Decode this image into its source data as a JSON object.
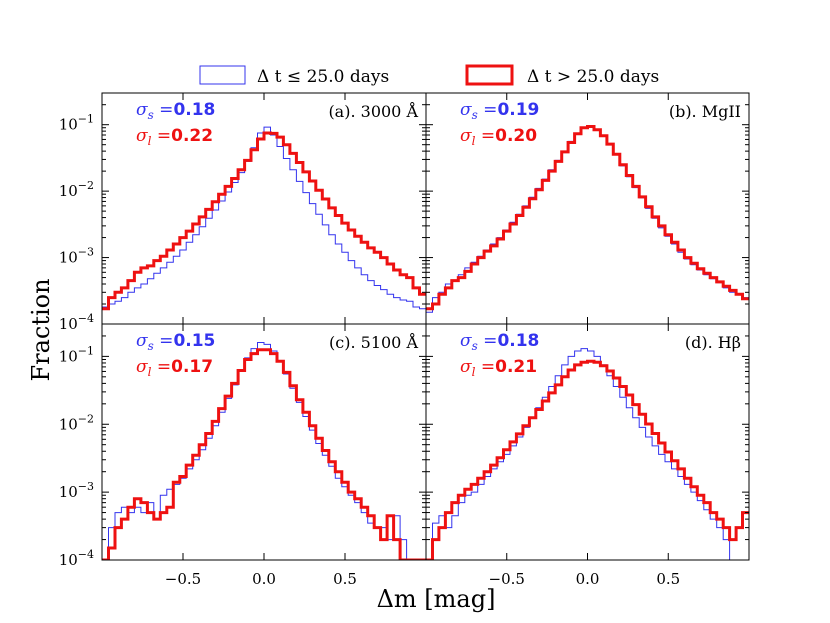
{
  "chart_data": {
    "type": "histogram",
    "layout": "2x2 panels, shared x and y axes",
    "xlabel": "Δm [mag]",
    "ylabel": "Fraction",
    "xlim": [
      -1.0,
      1.0
    ],
    "ylim": [
      0.0001,
      0.3
    ],
    "yscale": "log",
    "x_ticks": [
      -0.5,
      0.0,
      0.5
    ],
    "x_tick_labels": [
      "−0.5",
      "0.0",
      "0.5"
    ],
    "y_ticks": [
      0.0001,
      0.001,
      0.01,
      0.1
    ],
    "y_tick_labels": [
      {
        "base": "10",
        "exp": "−4"
      },
      {
        "base": "10",
        "exp": "−3"
      },
      {
        "base": "10",
        "exp": "−2"
      },
      {
        "base": "10",
        "exp": "−1"
      }
    ],
    "bin_width": 0.04,
    "bin_centers": [
      -0.98,
      -0.94,
      -0.9,
      -0.86,
      -0.82,
      -0.78,
      -0.74,
      -0.7,
      -0.66,
      -0.62,
      -0.58,
      -0.54,
      -0.5,
      -0.46,
      -0.42,
      -0.38,
      -0.34,
      -0.3,
      -0.26,
      -0.22,
      -0.18,
      -0.14,
      -0.1,
      -0.06,
      -0.02,
      0.02,
      0.06,
      0.1,
      0.14,
      0.18,
      0.22,
      0.26,
      0.3,
      0.34,
      0.38,
      0.42,
      0.46,
      0.5,
      0.54,
      0.58,
      0.62,
      0.66,
      0.7,
      0.74,
      0.78,
      0.82,
      0.86,
      0.9,
      0.94,
      0.98
    ],
    "legend": [
      {
        "label": "Δ t ≤ 25.0 days",
        "color": "#3333ee",
        "style": "thin"
      },
      {
        "label": "Δ t > 25.0 days",
        "color": "#ee1111",
        "style": "thick"
      }
    ],
    "panels": [
      {
        "label": "(a). 3000 Å",
        "sigma_s": {
          "symbol": "σ",
          "sub": "s",
          "value": "0.18"
        },
        "sigma_l": {
          "symbol": "σ",
          "sub": "l",
          "value": "0.22"
        },
        "series": [
          {
            "name": "Δ t ≤ 25.0 days",
            "values": [
              0.00018,
              0.0002,
              0.00022,
              0.00025,
              0.0003,
              0.00035,
              0.0004,
              0.00048,
              0.00058,
              0.0007,
              0.00085,
              0.00105,
              0.0013,
              0.0017,
              0.0022,
              0.0029,
              0.0039,
              0.0052,
              0.0071,
              0.0097,
              0.0135,
              0.019,
              0.028,
              0.045,
              0.075,
              0.092,
              0.07,
              0.047,
              0.031,
              0.021,
              0.014,
              0.0095,
              0.0065,
              0.0045,
              0.0031,
              0.0022,
              0.0016,
              0.0012,
              0.0009,
              0.0007,
              0.00055,
              0.00045,
              0.00038,
              0.00033,
              0.00028,
              0.00025,
              0.00023,
              0.00022,
              0.00018,
              0.00017
            ]
          },
          {
            "name": "Δ t > 25.0 days",
            "values": [
              0.00017,
              0.00025,
              0.0003,
              0.00035,
              0.00045,
              0.0006,
              0.0007,
              0.00075,
              0.0009,
              0.00105,
              0.0013,
              0.0016,
              0.002,
              0.0025,
              0.0032,
              0.0041,
              0.0053,
              0.0069,
              0.009,
              0.0118,
              0.0155,
              0.021,
              0.029,
              0.042,
              0.061,
              0.075,
              0.074,
              0.065,
              0.05,
              0.037,
              0.027,
              0.0195,
              0.0142,
              0.0103,
              0.0076,
              0.0056,
              0.0043,
              0.0033,
              0.0026,
              0.0021,
              0.0017,
              0.0014,
              0.0012,
              0.001,
              0.0008,
              0.00065,
              0.00055,
              0.0005,
              0.00035,
              0.00028
            ]
          }
        ]
      },
      {
        "label": "(b). MgII",
        "sigma_s": {
          "symbol": "σ",
          "sub": "s",
          "value": "0.19"
        },
        "sigma_l": {
          "symbol": "σ",
          "sub": "l",
          "value": "0.20"
        },
        "series": [
          {
            "name": "Δ t ≤ 25.0 days",
            "values": [
              0.00015,
              0.00025,
              0.0003,
              0.0004,
              0.00045,
              0.00055,
              0.0007,
              0.00085,
              0.00105,
              0.0013,
              0.0016,
              0.002,
              0.0026,
              0.0034,
              0.0045,
              0.006,
              0.0081,
              0.011,
              0.0152,
              0.021,
              0.029,
              0.04,
              0.056,
              0.075,
              0.092,
              0.095,
              0.085,
              0.068,
              0.05,
              0.035,
              0.024,
              0.0165,
              0.0113,
              0.0079,
              0.0055,
              0.0039,
              0.0028,
              0.0021,
              0.0016,
              0.0012,
              0.00095,
              0.00078,
              0.00065,
              0.00055,
              0.00048,
              0.00042,
              0.00035,
              0.0003,
              0.00028,
              0.00025
            ]
          },
          {
            "name": "Δ t > 25.0 days",
            "values": [
              0.00017,
              0.0002,
              0.00028,
              0.00035,
              0.00045,
              0.0005,
              0.00062,
              0.0008,
              0.001,
              0.00125,
              0.0015,
              0.0019,
              0.0025,
              0.0032,
              0.0043,
              0.0057,
              0.0077,
              0.0105,
              0.0145,
              0.02,
              0.028,
              0.039,
              0.054,
              0.073,
              0.09,
              0.094,
              0.084,
              0.068,
              0.051,
              0.036,
              0.025,
              0.0172,
              0.0118,
              0.0082,
              0.0058,
              0.0041,
              0.003,
              0.0022,
              0.0017,
              0.0013,
              0.001,
              0.00082,
              0.00068,
              0.00058,
              0.0005,
              0.00043,
              0.00037,
              0.00032,
              0.00028,
              0.00024
            ]
          }
        ]
      },
      {
        "label": "(c). 5100 Å",
        "sigma_s": {
          "symbol": "σ",
          "sub": "s",
          "value": "0.15"
        },
        "sigma_l": {
          "symbol": "σ",
          "sub": "l",
          "value": "0.17"
        },
        "series": [
          {
            "name": "Δ t ≤ 25.0 days",
            "values": [
              0.0001,
              0.0003,
              0.0005,
              0.0006,
              0.0005,
              0.0006,
              0.0005,
              0.0007,
              0.0004,
              0.0009,
              0.0011,
              0.0013,
              0.0016,
              0.0022,
              0.003,
              0.0042,
              0.0062,
              0.0095,
              0.015,
              0.024,
              0.038,
              0.06,
              0.095,
              0.13,
              0.16,
              0.15,
              0.12,
              0.085,
              0.055,
              0.034,
              0.021,
              0.013,
              0.0082,
              0.0052,
              0.0035,
              0.0024,
              0.0016,
              0.0012,
              0.0009,
              0.0007,
              0.0005,
              0.00035,
              0.0003,
              0.0003,
              0.0002,
              0.00045,
              0.0002,
              0.0001,
              0.0001,
              0.0001
            ]
          },
          {
            "name": "Δ t > 25.0 days",
            "values": [
              0.0001,
              0.00015,
              0.0003,
              0.0004,
              0.0006,
              0.0008,
              0.0007,
              0.0005,
              0.0004,
              0.0005,
              0.0006,
              0.0014,
              0.0017,
              0.0025,
              0.0035,
              0.005,
              0.0073,
              0.011,
              0.017,
              0.026,
              0.04,
              0.062,
              0.09,
              0.11,
              0.125,
              0.125,
              0.11,
              0.085,
              0.058,
              0.037,
              0.023,
              0.015,
              0.0095,
              0.0062,
              0.0041,
              0.0028,
              0.002,
              0.0014,
              0.001,
              0.0008,
              0.0006,
              0.00045,
              0.0003,
              0.0002,
              0.00045,
              0.0002,
              0.0001,
              0.0001,
              0.0001,
              0.0001
            ]
          }
        ]
      },
      {
        "label": "(d). Hβ",
        "sigma_s": {
          "symbol": "σ",
          "sub": "s",
          "value": "0.18"
        },
        "sigma_l": {
          "symbol": "σ",
          "sub": "l",
          "value": "0.21"
        },
        "series": [
          {
            "name": "Δ t ≤ 25.0 days",
            "values": [
              0.0001,
              0.00035,
              0.00045,
              0.0003,
              0.00045,
              0.0007,
              0.0009,
              0.001,
              0.0013,
              0.0017,
              0.0022,
              0.0028,
              0.0036,
              0.0048,
              0.0065,
              0.009,
              0.0125,
              0.0175,
              0.025,
              0.036,
              0.052,
              0.075,
              0.1,
              0.12,
              0.13,
              0.12,
              0.1,
              0.075,
              0.052,
              0.036,
              0.025,
              0.0175,
              0.0125,
              0.009,
              0.0065,
              0.0048,
              0.0036,
              0.0028,
              0.0022,
              0.0017,
              0.0013,
              0.001,
              0.00075,
              0.00055,
              0.0004,
              0.0003,
              0.0002,
              0.0001,
              0.0001,
              0.0001
            ]
          },
          {
            "name": "Δ t > 25.0 days",
            "values": [
              0.0001,
              0.0002,
              0.0003,
              0.0005,
              0.0007,
              0.0009,
              0.0011,
              0.0013,
              0.0016,
              0.002,
              0.0025,
              0.0032,
              0.0042,
              0.0055,
              0.0072,
              0.0095,
              0.0125,
              0.0165,
              0.022,
              0.029,
              0.038,
              0.05,
              0.063,
              0.075,
              0.082,
              0.085,
              0.082,
              0.073,
              0.061,
              0.048,
              0.036,
              0.027,
              0.0195,
              0.014,
              0.0101,
              0.0073,
              0.0053,
              0.0039,
              0.0029,
              0.0022,
              0.0016,
              0.0012,
              0.0009,
              0.0007,
              0.0005,
              0.0004,
              0.0003,
              0.0002,
              0.0003,
              0.0005
            ]
          }
        ]
      }
    ]
  }
}
